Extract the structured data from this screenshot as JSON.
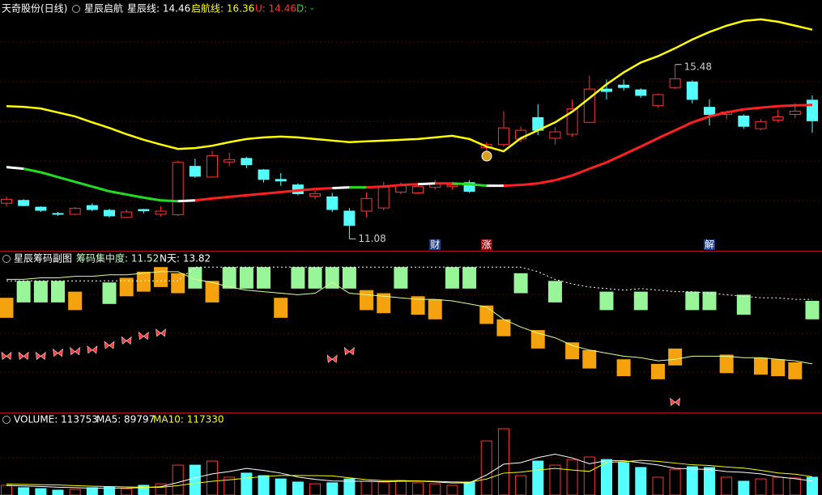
{
  "chart_data": [
    {
      "type": "candlestick",
      "title": "天奇股份(日线)",
      "subtitle": "星辰启航",
      "legend": [
        {
          "text": "星辰线: 14.46",
          "color": "#ffffff"
        },
        {
          "text": "启航线: 16.36",
          "color": "#ffff00"
        },
        {
          "text": "U: 14.46",
          "color": "#ff3232"
        },
        {
          "text": "D: -",
          "color": "#22dd22"
        }
      ],
      "up_color": "#ff3232",
      "down_color": "#54ffff",
      "ylim": [
        10.78,
        16.7
      ],
      "open": [
        11.98,
        12.05,
        11.88,
        11.72,
        11.7,
        11.92,
        11.8,
        11.62,
        11.82,
        11.7,
        11.69,
        12.91,
        12.64,
        13.02,
        13.11,
        12.82,
        12.58,
        12.44,
        12.16,
        12.14,
        11.78,
        11.78,
        11.86,
        12.26,
        12.24,
        12.38,
        12.4,
        12.5,
        13.38,
        13.46,
        13.6,
        14.14,
        13.62,
        13.72,
        14.02,
        14.86,
        14.96,
        14.84,
        14.44,
        14.9,
        15.04,
        14.4,
        14.22,
        14.18,
        13.86,
        14.08,
        14.22,
        14.58
      ],
      "high": [
        12.15,
        12.08,
        11.9,
        11.76,
        11.88,
        11.98,
        11.84,
        11.82,
        11.84,
        11.9,
        13.05,
        13.1,
        13.3,
        13.26,
        13.15,
        12.84,
        12.74,
        12.48,
        12.3,
        12.24,
        11.86,
        12.26,
        12.52,
        12.5,
        12.46,
        12.56,
        12.52,
        12.56,
        13.52,
        14.3,
        13.92,
        14.48,
        13.9,
        14.6,
        15.2,
        15.1,
        15.1,
        14.88,
        14.74,
        15.48,
        15.08,
        14.6,
        14.32,
        14.22,
        14.1,
        14.34,
        14.5,
        14.7
      ],
      "low": [
        11.9,
        11.9,
        11.76,
        11.66,
        11.68,
        11.78,
        11.62,
        11.6,
        11.72,
        11.65,
        11.66,
        12.62,
        12.62,
        12.92,
        12.86,
        12.5,
        12.42,
        12.18,
        12.08,
        11.76,
        11.08,
        11.62,
        11.8,
        12.2,
        12.2,
        12.32,
        12.32,
        12.24,
        13.3,
        13.4,
        13.52,
        13.7,
        13.46,
        13.66,
        14.0,
        14.6,
        14.82,
        14.64,
        14.4,
        14.86,
        14.5,
        13.94,
        14.1,
        13.86,
        13.82,
        14.02,
        14.12,
        13.76
      ],
      "close": [
        12.08,
        11.92,
        11.8,
        11.7,
        11.85,
        11.82,
        11.66,
        11.76,
        11.79,
        11.78,
        13.01,
        12.66,
        13.18,
        13.08,
        12.95,
        12.58,
        12.54,
        12.22,
        12.22,
        11.82,
        11.42,
        12.1,
        12.38,
        12.42,
        12.4,
        12.48,
        12.44,
        12.28,
        13.46,
        13.88,
        13.82,
        13.82,
        13.78,
        14.36,
        14.86,
        14.8,
        14.9,
        14.7,
        14.72,
        15.12,
        14.6,
        14.22,
        14.28,
        13.92,
        14.04,
        14.16,
        14.3,
        14.06
      ],
      "series": [
        {
          "values": [
            12.89,
            12.85,
            12.76,
            12.64,
            12.52,
            12.4,
            12.28,
            12.2,
            12.12,
            12.05,
            12.03,
            12.05,
            12.1,
            12.14,
            12.18,
            12.22,
            12.26,
            12.3,
            12.34,
            12.36,
            12.38,
            12.38,
            12.4,
            12.44,
            12.46,
            12.48,
            12.48,
            12.46,
            12.42,
            12.42,
            12.44,
            12.48,
            12.56,
            12.68,
            12.85,
            13.01,
            13.21,
            13.41,
            13.62,
            13.82,
            14.02,
            14.17,
            14.27,
            14.35,
            14.39,
            14.43,
            14.45,
            14.46
          ],
          "colors": [
            "#ffffff",
            "#22dd22",
            "#22dd22",
            "#22dd22",
            "#22dd22",
            "#22dd22",
            "#22dd22",
            "#22dd22",
            "#22dd22",
            "#22dd22",
            "#ffffff",
            "#ff2020",
            "#ff2020",
            "#ff2020",
            "#ff2020",
            "#ff2020",
            "#ff2020",
            "#ff2020",
            "#ff2020",
            "#ffffff",
            "#22dd22",
            "#ff2020",
            "#ff2020",
            "#ff2020",
            "#ffffff",
            "#ff2020",
            "#22dd22",
            "#22dd22",
            "#ffffff",
            "#ff2020",
            "#ff2020",
            "#ff2020",
            "#ff2020",
            "#ff2020",
            "#ff2020",
            "#ff2020",
            "#ff2020",
            "#ff2020",
            "#ff2020",
            "#ff2020",
            "#ff2020",
            "#ff2020",
            "#ff2020",
            "#ff2020",
            "#ff2020",
            "#ff2020",
            "#ff2020",
            "#ff2020"
          ]
        },
        {
          "color": "#ffff00",
          "values": [
            14.43,
            14.41,
            14.37,
            14.27,
            14.17,
            14.02,
            13.88,
            13.72,
            13.58,
            13.46,
            13.35,
            13.37,
            13.43,
            13.52,
            13.6,
            13.64,
            13.66,
            13.64,
            13.6,
            13.56,
            13.52,
            13.54,
            13.56,
            13.58,
            13.6,
            13.64,
            13.68,
            13.6,
            13.41,
            13.29,
            13.62,
            13.82,
            14.02,
            14.29,
            14.63,
            14.98,
            15.28,
            15.53,
            15.69,
            15.89,
            16.11,
            16.3,
            16.46,
            16.58,
            16.62,
            16.56,
            16.46,
            16.36
          ]
        }
      ],
      "marked_high": 15.48,
      "marked_low": 11.08,
      "events": [
        null,
        null,
        null,
        null,
        null,
        null,
        null,
        null,
        null,
        null,
        null,
        null,
        null,
        null,
        null,
        null,
        null,
        null,
        null,
        null,
        null,
        null,
        null,
        null,
        null,
        {
          "label": "财",
          "color": "#1f3f8f"
        },
        null,
        null,
        {
          "label": "涨",
          "color": "#9a1010"
        },
        null,
        null,
        null,
        null,
        null,
        null,
        null,
        null,
        null,
        null,
        null,
        null,
        {
          "label": "解",
          "color": "#1f3f8f"
        },
        null,
        null,
        null,
        null,
        null,
        null
      ]
    },
    {
      "type": "range-bar",
      "title": "星辰筹码副图",
      "legend": [
        {
          "text": "筹码集中度: 11.52",
          "color": "#c8ffc8"
        },
        {
          "text": "N天: 13.82",
          "color": "#ffffff"
        }
      ],
      "ylim": [
        0,
        100
      ],
      "ranges": [
        [
          59,
          72
        ],
        [
          69,
          83
        ],
        [
          69,
          83
        ],
        [
          69,
          83
        ],
        [
          64,
          76
        ],
        null,
        [
          68,
          82
        ],
        [
          73,
          85
        ],
        [
          76,
          89
        ],
        [
          79,
          92
        ],
        [
          75,
          88
        ],
        [
          78,
          92
        ],
        [
          69,
          83
        ],
        [
          78,
          92
        ],
        [
          78,
          92
        ],
        [
          78,
          92
        ],
        [
          59,
          72
        ],
        [
          78,
          92
        ],
        [
          78,
          92
        ],
        [
          78,
          92
        ],
        [
          78,
          92
        ],
        [
          64,
          77
        ],
        [
          62,
          75
        ],
        [
          78,
          92
        ],
        [
          61,
          73
        ],
        [
          58,
          71
        ],
        [
          78,
          92
        ],
        [
          78,
          92
        ],
        [
          55,
          67
        ],
        [
          47,
          58
        ],
        [
          75,
          88
        ],
        [
          39,
          51
        ],
        [
          69,
          83
        ],
        [
          32,
          43
        ],
        [
          26,
          38
        ],
        [
          64,
          76
        ],
        [
          21,
          32
        ],
        [
          64,
          76
        ],
        [
          19,
          29
        ],
        [
          28,
          39
        ],
        [
          64,
          76
        ],
        [
          64,
          76
        ],
        [
          23,
          35
        ],
        [
          61,
          74
        ],
        [
          22,
          33
        ],
        [
          21,
          32
        ],
        [
          19,
          30
        ],
        [
          58,
          70
        ]
      ],
      "range_colors": [
        "#f5a20f",
        "#98f598",
        "#98f598",
        "#98f598",
        "#f5a20f",
        null,
        "#98f598",
        "#f5a20f",
        "#f5a20f",
        "#f5a20f",
        "#f5a20f",
        "#98f598",
        "#f5a20f",
        "#98f598",
        "#98f598",
        "#98f598",
        "#f5a20f",
        "#98f598",
        "#98f598",
        "#98f598",
        "#98f598",
        "#f5a20f",
        "#f5a20f",
        "#98f598",
        "#f5a20f",
        "#f5a20f",
        "#98f598",
        "#98f598",
        "#f5a20f",
        "#f5a20f",
        "#98f598",
        "#f5a20f",
        "#98f598",
        "#f5a20f",
        "#f5a20f",
        "#98f598",
        "#f5a20f",
        "#98f598",
        "#f5a20f",
        "#f5a20f",
        "#98f598",
        "#98f598",
        "#f5a20f",
        "#98f598",
        "#f5a20f",
        "#f5a20f",
        "#f5a20f",
        "#98f598"
      ],
      "series": [
        {
          "color": "#ffffff",
          "dashed": true,
          "values": [
            83,
            83,
            83,
            83,
            83,
            83,
            83,
            83,
            83,
            83,
            83,
            92,
            92,
            92,
            92,
            92,
            92,
            92,
            92,
            92,
            92,
            92,
            92,
            92,
            92,
            92,
            92,
            92,
            92,
            92,
            92,
            89,
            84,
            81,
            79,
            78,
            77,
            78,
            77,
            76,
            76,
            75,
            74,
            73,
            72,
            72,
            71,
            71
          ]
        },
        {
          "color": "#e0ff90",
          "dashed": false,
          "values": [
            84,
            84,
            85,
            85,
            86,
            86,
            87,
            87,
            88,
            89,
            89,
            84,
            82,
            79,
            77,
            76,
            75,
            74,
            75,
            82,
            75,
            74,
            73,
            72,
            71,
            71,
            70,
            68,
            66,
            58,
            53,
            49,
            46,
            41,
            38,
            36,
            34,
            33,
            31,
            32,
            34,
            34,
            34,
            33,
            33,
            32,
            31,
            29
          ]
        }
      ],
      "signal_color": "#ff3a3a",
      "signals": [
        34,
        34,
        34,
        36,
        37,
        38,
        41,
        44,
        47,
        49,
        null,
        null,
        null,
        null,
        null,
        null,
        null,
        null,
        null,
        32,
        37,
        null,
        null,
        null,
        null,
        null,
        null,
        null,
        null,
        null,
        null,
        null,
        null,
        null,
        null,
        null,
        null,
        null,
        null,
        4,
        null,
        null,
        null,
        null,
        null,
        null,
        null,
        null
      ]
    },
    {
      "type": "bar",
      "legend": [
        {
          "text": "VOLUME: 113753",
          "color": "#ffffff"
        },
        {
          "text": "MA5: 89797",
          "color": "#ffffff"
        },
        {
          "text": "MA10: 117330",
          "color": "#ffff00"
        }
      ],
      "ylim": [
        0,
        450000
      ],
      "values": [
        62000,
        47000,
        41000,
        31000,
        36000,
        47000,
        52000,
        41000,
        62000,
        72000,
        191000,
        191000,
        217000,
        114000,
        140000,
        124000,
        103000,
        83000,
        72000,
        78000,
        103000,
        88000,
        83000,
        93000,
        78000,
        72000,
        62000,
        83000,
        346000,
        424000,
        124000,
        217000,
        191000,
        227000,
        243000,
        227000,
        207000,
        176000,
        114000,
        165000,
        181000,
        176000,
        114000,
        88000,
        103000,
        114000,
        109000,
        113753
      ],
      "series": [
        {
          "color": "#ffffff",
          "values": [
            60000,
            58000,
            55000,
            50000,
            47000,
            43000,
            43000,
            44000,
            48000,
            53000,
            80000,
            110000,
            135000,
            150000,
            170000,
            157000,
            140000,
            115000,
            100000,
            90000,
            88000,
            88000,
            85000,
            88000,
            89000,
            84000,
            77000,
            78000,
            128000,
            197000,
            207000,
            239000,
            261000,
            237000,
            200000,
            220000,
            219000,
            206000,
            192000,
            171000,
            167000,
            163000,
            150000,
            145000,
            135000,
            116000,
            104000,
            89797
          ]
        },
        {
          "color": "#ffff00",
          "values": [
            70000,
            68000,
            66000,
            64000,
            60000,
            56000,
            54000,
            52000,
            50000,
            49000,
            60000,
            75000,
            88000,
            97000,
            108000,
            118000,
            125000,
            125000,
            124000,
            122000,
            110000,
            98000,
            92000,
            92000,
            90000,
            87000,
            84000,
            82000,
            102000,
            140000,
            146000,
            160000,
            170000,
            160000,
            151000,
            208000,
            213000,
            222000,
            215000,
            204000,
            193000,
            189000,
            179000,
            172000,
            158000,
            141000,
            133000,
            117330
          ]
        }
      ]
    }
  ]
}
